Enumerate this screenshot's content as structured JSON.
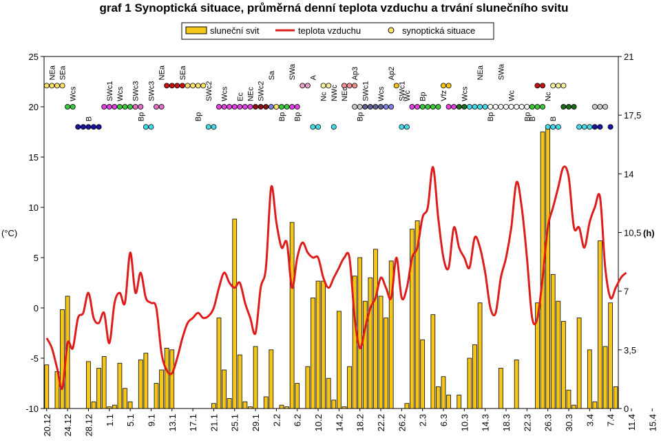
{
  "chart_data": {
    "type": "bar+line+scatter",
    "title": "graf 1 Synoptická situace, průměrná denní teplota vzduchu a trvání slunečního svitu",
    "legend": [
      "sluneční svit",
      "teplota vzduchu",
      "synoptická situace"
    ],
    "legend_placement": "top-center",
    "ylabel_left": "(°C)",
    "ylabel_right": "(h)",
    "y_left": {
      "min": -10,
      "max": 25,
      "ticks": [
        "-10",
        "-5",
        "0",
        "5",
        "10",
        "15",
        "20",
        "25"
      ]
    },
    "y_right": {
      "min": 0,
      "max": 21,
      "ticks": [
        "0",
        "3,5",
        "7",
        "10,5",
        "14",
        "17,5",
        "21"
      ]
    },
    "x_tick_labels": [
      "20.12",
      "24.12",
      "28.12",
      "1.1",
      "5.1",
      "9.1",
      "13.1",
      "17.1",
      "21.1",
      "25.1",
      "29.1",
      "2.2",
      "6.2",
      "10.2",
      "14.2",
      "18.2",
      "22.2",
      "26.2",
      "2.3",
      "6.3",
      "10.3",
      "14.3",
      "18.3",
      "22.3",
      "26.3",
      "30.3",
      "3.4",
      "7.4",
      "11.4",
      "15.4"
    ],
    "x_tick_interval_days": 4,
    "colors": {
      "sunshine_fill": "#F5C518",
      "sunshine_edge": "#000000",
      "temperature": "#DD1C1C",
      "bg": "#FFFFFF"
    },
    "sunshine_hours": [
      2.6,
      0,
      2.2,
      5.9,
      6.7,
      0,
      0,
      0,
      2.8,
      0.4,
      2.4,
      3.1,
      0.1,
      0.2,
      2.7,
      1.2,
      0.4,
      0,
      2.9,
      3.3,
      0,
      1.5,
      2.3,
      3.6,
      3.5,
      0,
      0,
      0,
      0,
      0,
      0,
      0,
      0.3,
      5.4,
      2.3,
      0.6,
      11.3,
      3.2,
      0.4,
      0.1,
      3.7,
      0,
      0.7,
      3.5,
      0,
      0.2,
      0.1,
      11.1,
      1.5,
      0,
      2.5,
      6.6,
      7.6,
      7.6,
      1.8,
      0.5,
      5.8,
      0.1,
      2.5,
      7.9,
      9.0,
      6.4,
      7.8,
      9.5,
      6.7,
      5.4,
      8.8,
      0,
      0,
      0.3,
      10.7,
      11.2,
      4.1,
      0,
      5.6,
      1.3,
      1.9,
      0.8,
      0,
      0.8,
      0,
      3.0,
      3.8,
      6.3,
      0,
      0,
      0,
      2.4,
      0,
      0,
      2.9,
      0,
      0,
      0,
      6.3,
      16.5,
      16.7,
      8.0,
      6.4,
      5.2,
      1.1,
      0.2,
      5.4,
      0,
      3.5,
      0.4,
      10.0,
      3.7,
      6.3,
      1.3
    ],
    "temperature_c": [
      -3.0,
      -4.0,
      -6.0,
      -8.0,
      -3.5,
      -4.0,
      -1.0,
      -0.5,
      1.5,
      -1.0,
      -1.5,
      -0.5,
      -3.5,
      0.5,
      1.5,
      0.5,
      5.5,
      1.5,
      3.5,
      1.0,
      0.5,
      0.0,
      -4.5,
      -6.2,
      -6.5,
      -5.0,
      -3.0,
      -1.5,
      -1.0,
      -0.5,
      -1.0,
      -0.8,
      0.0,
      2.0,
      3.5,
      2.5,
      2.0,
      2.5,
      0.5,
      -1.0,
      -2.5,
      2.0,
      4.0,
      12.0,
      8.5,
      6.0,
      6.5,
      2.0,
      5.0,
      6.5,
      5.5,
      5.0,
      5.0,
      3.0,
      2.0,
      3.0,
      4.0,
      5.0,
      5.0,
      -1.0,
      -4.0,
      -2.0,
      0.0,
      1.0,
      3.0,
      2.0,
      1.0,
      5.0,
      1.0,
      2.0,
      5.0,
      6.0,
      9.0,
      10.0,
      14.0,
      9.0,
      5.0,
      4.0,
      8.0,
      6.0,
      5.0,
      4.0,
      7.0,
      6.0,
      3.5,
      0.0,
      -0.5,
      3.0,
      5.0,
      8.0,
      12.5,
      10.0,
      5.0,
      -1.0,
      -1.0,
      3.0,
      8.0,
      10.0,
      12.0,
      14.0,
      13.0,
      8.0,
      8.0,
      6.0,
      8.5,
      10.0,
      11.0,
      4.0,
      1.0,
      2.0,
      3.0,
      3.5
    ],
    "synoptic_situations": [
      {
        "code": "NEa",
        "day": 1,
        "y": 22.1,
        "color": "#E8E080"
      },
      {
        "code": "SEa",
        "day": 3,
        "y": 22.1,
        "color": "#FFE36A"
      },
      {
        "code": "Wcs",
        "day": 5,
        "y": 20.0,
        "color": "#3CC83C"
      },
      {
        "code": "B",
        "day": 8,
        "y": 18.0,
        "color": "#1515A0"
      },
      {
        "code": "SWc1",
        "day": 12,
        "y": 20.0,
        "color": "#E040E0"
      },
      {
        "code": "Wcs",
        "day": 14,
        "y": 20.0,
        "color": "#3CC83C"
      },
      {
        "code": "SWc3",
        "day": 17,
        "y": 20.0,
        "color": "#E070C8"
      },
      {
        "code": "Bp",
        "day": 18,
        "y": 18.0,
        "color": "#45D8E8"
      },
      {
        "code": "SWc3",
        "day": 20,
        "y": 20.0,
        "color": "#E070C8"
      },
      {
        "code": "NEa",
        "day": 22,
        "y": 22.1,
        "color": "#C81010"
      },
      {
        "code": "SEa",
        "day": 26,
        "y": 22.1,
        "color": "#FFE36A"
      },
      {
        "code": "Bp",
        "day": 29,
        "y": 18.0,
        "color": "#45D8E8"
      },
      {
        "code": "SWc2",
        "day": 31,
        "y": 20.0,
        "color": "#E040E0"
      },
      {
        "code": "Wcs",
        "day": 34,
        "y": 20.0,
        "color": "#E040E0"
      },
      {
        "code": "Ec",
        "day": 37,
        "y": 20.0,
        "color": "#8B1010"
      },
      {
        "code": "NEc",
        "day": 39,
        "y": 20.0,
        "color": "#8080E0"
      },
      {
        "code": "SWc2",
        "day": 41,
        "y": 20.0,
        "color": "#3CC83C"
      },
      {
        "code": "Sa",
        "day": 43,
        "y": 22.1,
        "color": "#E8A0C8"
      },
      {
        "code": "Bp",
        "day": 45,
        "y": 18.0,
        "color": "#45D8E8"
      },
      {
        "code": "SWa",
        "day": 47,
        "y": 22.1,
        "color": "#FFF4A0"
      },
      {
        "code": "Bp",
        "day": 48,
        "y": 18.0,
        "color": "#45D8E8"
      },
      {
        "code": "A",
        "day": 51,
        "y": 22.1,
        "color": "#F09090"
      },
      {
        "code": "Nc",
        "day": 53,
        "y": 20.0,
        "color": "#C8C8C8"
      },
      {
        "code": "NWc",
        "day": 55,
        "y": 20.0,
        "color": "#606090"
      },
      {
        "code": "NEc",
        "day": 57,
        "y": 20.0,
        "color": "#8080E0"
      },
      {
        "code": "Ap3",
        "day": 59,
        "y": 22.1,
        "color": "#F5C518"
      },
      {
        "code": "Bp",
        "day": 60,
        "y": 18.0,
        "color": "#45D8E8"
      },
      {
        "code": "SWc1",
        "day": 61,
        "y": 20.0,
        "color": "#E040E0"
      },
      {
        "code": "Wcs",
        "day": 64,
        "y": 20.0,
        "color": "#3CC83C"
      },
      {
        "code": "Ap2",
        "day": 66,
        "y": 22.1,
        "color": "#F5C518"
      },
      {
        "code": "SWc1",
        "day": 68,
        "y": 20.0,
        "color": "#E040E0"
      },
      {
        "code": "Wc",
        "day": 69,
        "y": 20.0,
        "color": "#1A6A1A"
      },
      {
        "code": "Bp",
        "day": 72,
        "y": 20.0,
        "color": "#45D8E8"
      },
      {
        "code": "Vfz",
        "day": 76,
        "y": 20.0,
        "color": "#FFFFFF"
      },
      {
        "code": "Wcs",
        "day": 80,
        "y": 20.0,
        "color": "#3CC83C"
      },
      {
        "code": "NEa",
        "day": 83,
        "y": 22.1,
        "color": "#C81010"
      },
      {
        "code": "Bp",
        "day": 85,
        "y": 18.0,
        "color": "#45D8E8"
      },
      {
        "code": "SWa",
        "day": 87,
        "y": 22.1,
        "color": "#FFF4A0"
      },
      {
        "code": "Wc",
        "day": 89,
        "y": 20.0,
        "color": "#1A6A1A"
      },
      {
        "code": "Bp",
        "day": 92,
        "y": 18.0,
        "color": "#45D8E8"
      },
      {
        "code": "B",
        "day": 93,
        "y": 18.0,
        "color": "#1515A0"
      },
      {
        "code": "Nc",
        "day": 96,
        "y": 20.0,
        "color": "#C8C8C8"
      },
      {
        "code": "B",
        "day": 97,
        "y": 18.0,
        "color": "#1515A0"
      }
    ],
    "synoptic_dots": [
      {
        "y": 22.1,
        "days": [
          0,
          1,
          2,
          3
        ],
        "color": "#FFE36A"
      },
      {
        "y": 20.0,
        "days": [
          4,
          5
        ],
        "color": "#3CC83C"
      },
      {
        "y": 18.0,
        "days": [
          6,
          7,
          8,
          9,
          10
        ],
        "color": "#1515A0"
      },
      {
        "y": 20.0,
        "days": [
          11,
          12,
          13
        ],
        "color": "#E040E0"
      },
      {
        "y": 20.0,
        "days": [
          14,
          15,
          16
        ],
        "color": "#3CC83C"
      },
      {
        "y": 20.0,
        "days": [
          17,
          18
        ],
        "color": "#E070C8"
      },
      {
        "y": 18.0,
        "days": [
          19,
          20
        ],
        "color": "#45D8E8"
      },
      {
        "y": 20.0,
        "days": [
          21,
          22
        ],
        "color": "#E070C8"
      },
      {
        "y": 22.1,
        "days": [
          23,
          24,
          25,
          26
        ],
        "color": "#C81010"
      },
      {
        "y": 22.1,
        "days": [
          27,
          28,
          29,
          30
        ],
        "color": "#FFE36A"
      },
      {
        "y": 18.0,
        "days": [
          31,
          32
        ],
        "color": "#45D8E8"
      },
      {
        "y": 20.0,
        "days": [
          33,
          34,
          35,
          36,
          37,
          38,
          39
        ],
        "color": "#E040E0"
      },
      {
        "y": 20.0,
        "days": [
          40,
          41,
          42
        ],
        "color": "#8B1010"
      },
      {
        "y": 20.0,
        "days": [
          43
        ],
        "color": "#8080E0"
      },
      {
        "y": 20.0,
        "days": [
          44
        ],
        "color": "#FFE36A"
      },
      {
        "y": 20.0,
        "days": [
          45,
          46
        ],
        "color": "#3CC83C"
      },
      {
        "y": 20.0,
        "days": [
          47,
          48
        ],
        "color": "#E040E0"
      },
      {
        "y": 22.1,
        "days": [
          49,
          50
        ],
        "color": "#E8A0C8"
      },
      {
        "y": 18.0,
        "days": [
          51,
          52
        ],
        "color": "#45D8E8"
      },
      {
        "y": 22.1,
        "days": [
          53,
          54
        ],
        "color": "#FFF4A0"
      },
      {
        "y": 18.0,
        "days": [
          55
        ],
        "color": "#45D8E8"
      },
      {
        "y": 22.1,
        "days": [
          57,
          58,
          59
        ],
        "color": "#F09090"
      },
      {
        "y": 20.0,
        "days": [
          59,
          60
        ],
        "color": "#C8C8C8"
      },
      {
        "y": 20.0,
        "days": [
          61,
          62,
          63,
          64
        ],
        "color": "#606090"
      },
      {
        "y": 20.0,
        "days": [
          65,
          66
        ],
        "color": "#8080E0"
      },
      {
        "y": 22.1,
        "days": [
          67
        ],
        "color": "#F5C518"
      },
      {
        "y": 18.0,
        "days": [
          68,
          69
        ],
        "color": "#45D8E8"
      },
      {
        "y": 20.0,
        "days": [
          70,
          71
        ],
        "color": "#E040E0"
      },
      {
        "y": 20.0,
        "days": [
          72,
          73,
          74,
          75
        ],
        "color": "#3CC83C"
      },
      {
        "y": 22.1,
        "days": [
          76,
          77
        ],
        "color": "#F5C518"
      },
      {
        "y": 20.0,
        "days": [
          77,
          78
        ],
        "color": "#E040E0"
      },
      {
        "y": 20.0,
        "days": [
          79,
          80
        ],
        "color": "#1A6A1A"
      },
      {
        "y": 20.0,
        "days": [
          81,
          82,
          83,
          84
        ],
        "color": "#45D8E8"
      },
      {
        "y": 20.0,
        "days": [
          85,
          86,
          87,
          88,
          89,
          90,
          91,
          92
        ],
        "color": "#FFFFFF"
      },
      {
        "y": 20.0,
        "days": [
          93,
          94,
          95
        ],
        "color": "#3CC83C"
      },
      {
        "y": 22.1,
        "days": [
          94,
          95
        ],
        "color": "#C81010"
      },
      {
        "y": 18.0,
        "days": [
          96,
          97,
          98
        ],
        "color": "#45D8E8"
      },
      {
        "y": 22.1,
        "days": [
          97,
          98,
          99
        ],
        "color": "#FFF4A0"
      },
      {
        "y": 20.0,
        "days": [
          99,
          100,
          101
        ],
        "color": "#1A6A1A"
      },
      {
        "y": 18.0,
        "days": [
          102,
          103,
          104
        ],
        "color": "#45D8E8"
      },
      {
        "y": 18.0,
        "days": [
          105,
          106
        ],
        "color": "#1515A0"
      },
      {
        "y": 20.0,
        "days": [
          105,
          106,
          107
        ],
        "color": "#C8C8C8"
      },
      {
        "y": 18.0,
        "days": [
          108
        ],
        "color": "#1515A0"
      }
    ]
  }
}
